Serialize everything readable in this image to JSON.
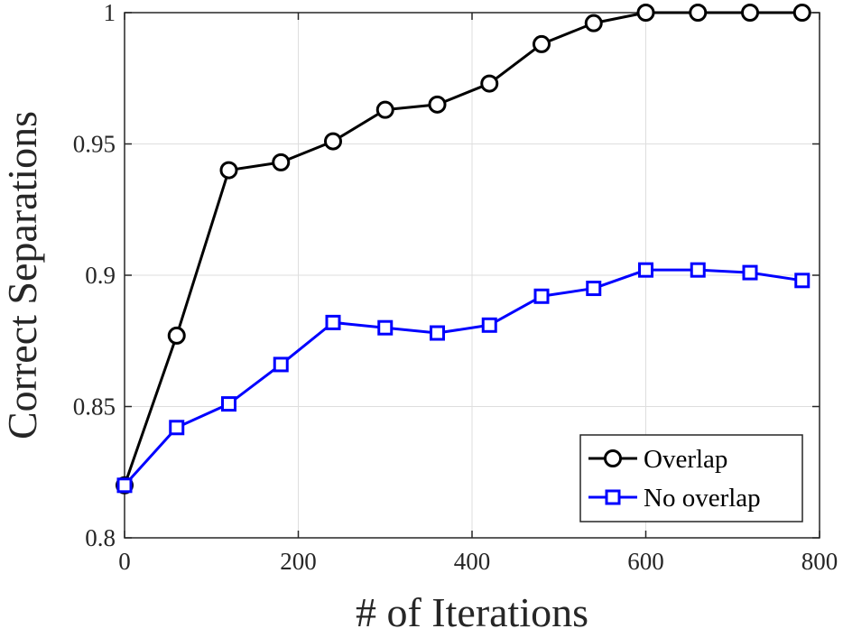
{
  "chart_data": {
    "type": "line",
    "title": "",
    "xlabel": "# of Iterations",
    "ylabel": "Correct Separations",
    "xlim": [
      0,
      800
    ],
    "ylim": [
      0.8,
      1.0
    ],
    "xticks": [
      0,
      200,
      400,
      600,
      800
    ],
    "xtick_labels": [
      "0",
      "200",
      "400",
      "600",
      "800"
    ],
    "yticks": [
      0.8,
      0.85,
      0.9,
      0.95,
      1.0
    ],
    "ytick_labels": [
      "0.8",
      "0.85",
      "0.9",
      "0.95",
      "1"
    ],
    "grid": true,
    "legend_position": "bottom-right",
    "series": [
      {
        "name": "Overlap",
        "color": "#000000",
        "marker": "circle",
        "x": [
          0,
          60,
          120,
          180,
          240,
          300,
          360,
          420,
          480,
          540,
          600,
          660,
          720,
          780
        ],
        "values": [
          0.82,
          0.877,
          0.94,
          0.943,
          0.951,
          0.963,
          0.965,
          0.973,
          0.988,
          0.996,
          1.0,
          1.0,
          1.0,
          1.0
        ]
      },
      {
        "name": "No overlap",
        "color": "#0000ff",
        "marker": "square",
        "x": [
          0,
          60,
          120,
          180,
          240,
          300,
          360,
          420,
          480,
          540,
          600,
          660,
          720,
          780
        ],
        "values": [
          0.82,
          0.842,
          0.851,
          0.866,
          0.882,
          0.88,
          0.878,
          0.881,
          0.892,
          0.895,
          0.902,
          0.902,
          0.901,
          0.898
        ]
      }
    ]
  }
}
